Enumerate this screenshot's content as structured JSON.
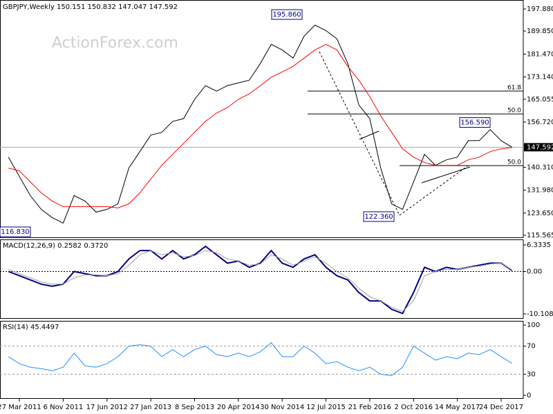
{
  "watermark": "ActionForex.com",
  "chart_data": [
    {
      "type": "line",
      "title": "GBPJPY,Weekly",
      "quote": [
        150.151,
        150.832,
        147.047,
        147.592
      ],
      "categories": [
        null,
        "27 Mar 2011",
        null,
        null,
        null,
        "6 Nov 2011",
        null,
        null,
        null,
        "17 Jun 2012",
        null,
        null,
        null,
        "27 Jan 2013",
        null,
        null,
        null,
        "8 Sep 2013",
        null,
        null,
        null,
        "20 Apr 2014",
        null,
        null,
        null,
        "30 Nov 2014",
        null,
        null,
        null,
        "12 Jul 2015",
        null,
        null,
        null,
        "21 Feb 2016",
        null,
        null,
        null,
        "2 Oct 2016",
        null,
        null,
        null,
        "14 May 2017",
        null,
        null,
        null,
        "24 Dec 2017",
        null
      ],
      "series": [
        {
          "color": "#000000",
          "values": [
            144,
            137,
            130,
            125,
            122,
            120,
            130,
            128,
            124,
            125,
            127,
            140,
            146,
            152,
            153,
            157,
            158,
            165,
            170,
            168,
            170,
            171,
            172,
            178,
            185,
            183,
            180,
            188,
            192,
            190,
            187,
            178,
            163,
            158,
            140,
            127,
            125,
            135,
            145,
            141,
            143,
            144,
            150,
            150,
            154,
            150,
            147.592
          ]
        },
        {
          "color": "#ff0000",
          "values": [
            140,
            139,
            135,
            131,
            128,
            126,
            126,
            126,
            126,
            126,
            125.5,
            127,
            131,
            136,
            141,
            145,
            149,
            153,
            157,
            160,
            162,
            165,
            167,
            170,
            173,
            175,
            177,
            180,
            183,
            185,
            183,
            177,
            172,
            166,
            159,
            153,
            147,
            144,
            142,
            141,
            141,
            141,
            143,
            144,
            146,
            147,
            147.5
          ]
        }
      ],
      "ylim": [
        114.56,
        201.14
      ],
      "yticks": [
        {
          "value": 197.88,
          "label": "197.880"
        },
        {
          "value": 189.85,
          "label": "189.850"
        },
        {
          "value": 181.47,
          "label": "181.470"
        },
        {
          "value": 173.14,
          "label": "173.140"
        },
        165.055,
        {
          "value": 156.72,
          "label": "156.720"
        },
        {
          "value": 140.31,
          "label": "140.310"
        },
        {
          "value": 131.98,
          "label": "131.980"
        },
        {
          "value": 123.65,
          "label": "123.650"
        },
        115.565
      ],
      "annotations": [
        {
          "value": 195.86,
          "label": "195.860"
        },
        {
          "value": 156.59,
          "label": "156.590"
        },
        {
          "value": 122.36,
          "label": "122.360"
        },
        {
          "value": 116.83,
          "label": "116.830"
        }
      ],
      "levels": [
        {
          "value": 168.0,
          "label": "61.8"
        },
        {
          "value": 159.7,
          "label": "50.0"
        },
        {
          "value": 140.9,
          "label": "50.0"
        }
      ]
    },
    {
      "type": "line",
      "title": "MACD(12,26,9)",
      "readings": [
        0.2582,
        {
          "value": 0.372,
          "label": "0.3720"
        }
      ],
      "series": [
        {
          "color": "#000080",
          "values": [
            0,
            -1,
            -2,
            -3,
            -3.5,
            -3,
            0,
            -0.5,
            -1,
            -1,
            0,
            3,
            5,
            5,
            3,
            5,
            3,
            4,
            6,
            4,
            2,
            2.5,
            1,
            2,
            5,
            2,
            1,
            3,
            4,
            1,
            -1,
            -2,
            -5,
            -7,
            -7,
            -9,
            -10,
            -5,
            1,
            0,
            1,
            0.5,
            1,
            1.5,
            2,
            2,
            0.2582
          ]
        },
        {
          "color": "#a0a0a0",
          "values": [
            0.5,
            -0.5,
            -1.5,
            -2.5,
            -3,
            -3,
            -1.5,
            -0.8,
            -0.8,
            -1,
            -0.5,
            1.5,
            4,
            5,
            4,
            4.5,
            3.5,
            3.8,
            5,
            4.5,
            3,
            2.5,
            1.5,
            1.8,
            4,
            3,
            1.5,
            2.5,
            3.5,
            2,
            0,
            -1.5,
            -4,
            -6,
            -7,
            -8.5,
            -9.5,
            -7,
            -1,
            0,
            0.5,
            0.5,
            1,
            1.3,
            1.8,
            2,
            0.372
          ]
        }
      ],
      "ylim": [
        -11.26,
        7.65
      ],
      "yticks": [
        6.3335,
        {
          "value": 0,
          "label": "0.00"
        },
        -10.1082
      ]
    },
    {
      "type": "line",
      "title": "RSI(14)",
      "reading": 45.4497,
      "series": [
        {
          "color": "#1e90ff",
          "values": [
            55,
            45,
            40,
            38,
            35,
            40,
            60,
            42,
            40,
            45,
            55,
            70,
            72,
            70,
            55,
            65,
            55,
            65,
            70,
            58,
            55,
            60,
            55,
            62,
            75,
            55,
            55,
            70,
            60,
            45,
            48,
            40,
            35,
            40,
            30,
            28,
            40,
            70,
            60,
            50,
            55,
            52,
            60,
            58,
            65,
            55,
            45.4497
          ]
        }
      ],
      "ylim": [
        -5,
        106
      ],
      "yticks": [
        100,
        70,
        30,
        0
      ],
      "levels": [
        70,
        30
      ]
    }
  ]
}
